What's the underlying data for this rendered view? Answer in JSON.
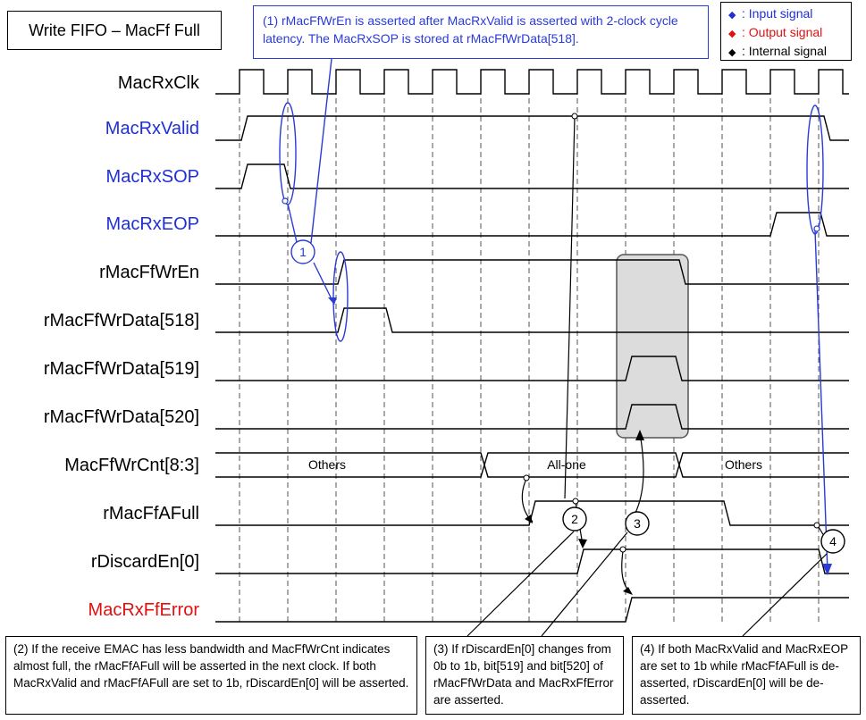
{
  "title": "Write FIFO – MacFf Full",
  "legend": {
    "input": {
      "label": ": Input signal",
      "color": "#1f2fd6"
    },
    "output": {
      "label": ": Output signal",
      "color": "#e01010"
    },
    "internal": {
      "label": ": Internal signal",
      "color": "#000000"
    }
  },
  "signals": [
    {
      "name": "MacRxClk",
      "kind": "internal"
    },
    {
      "name": "MacRxValid",
      "kind": "input"
    },
    {
      "name": "MacRxSOP",
      "kind": "input"
    },
    {
      "name": "MacRxEOP",
      "kind": "input"
    },
    {
      "name": "rMacFfWrEn",
      "kind": "internal"
    },
    {
      "name": "rMacFfWrData[518]",
      "kind": "internal"
    },
    {
      "name": "rMacFfWrData[519]",
      "kind": "internal"
    },
    {
      "name": "rMacFfWrData[520]",
      "kind": "internal"
    },
    {
      "name": "MacFfWrCnt[8:3]",
      "kind": "internal"
    },
    {
      "name": "rMacFfAFull",
      "kind": "internal"
    },
    {
      "name": "rDiscardEn[0]",
      "kind": "internal"
    },
    {
      "name": "MacRxFfError",
      "kind": "output"
    }
  ],
  "bus_values": [
    "Others",
    "All-one",
    "Others"
  ],
  "markers": [
    "1",
    "2",
    "3",
    "4"
  ],
  "notes": {
    "n1": "(1) rMacFfWrEn is asserted after MacRxValid is asserted with 2-clock cycle latency. The MacRxSOP is stored at rMacFfWrData[518].",
    "n2": "(2) If the receive EMAC has less bandwidth and MacFfWrCnt indicates almost full, the rMacFfAFull will be asserted in the next clock. If both MacRxValid and rMacFfAFull are set to 1b, rDiscardEn[0] will be asserted.",
    "n3": "(3) If rDiscardEn[0] changes from 0b to 1b, bit[519] and bit[520] of rMacFfWrData and MacRxFfError are asserted.",
    "n4": "(4) If both MacRxValid and MacRxEOP are set to 1b while rMacFfAFull is de-asserted, rDiscardEn[0] will be de-asserted."
  }
}
